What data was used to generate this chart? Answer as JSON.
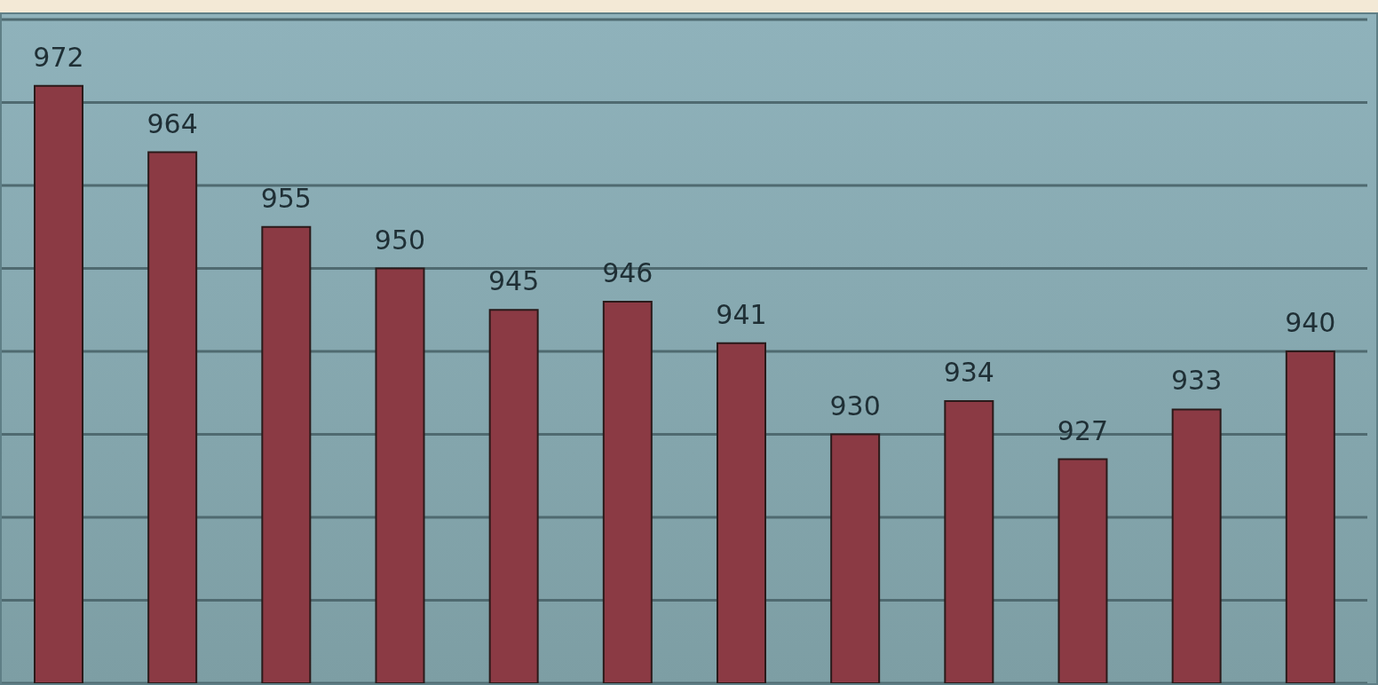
{
  "chart_data": {
    "type": "bar",
    "categories": [
      null,
      null,
      null,
      null,
      null,
      null,
      null,
      null,
      null,
      null,
      null,
      null
    ],
    "values": [
      972,
      964,
      955,
      950,
      945,
      946,
      941,
      930,
      934,
      927,
      933,
      940
    ],
    "color": "#8b3a44",
    "data_labels": true,
    "grid": "y",
    "ylim": [
      900,
      980
    ],
    "yticks": [
      {
        "value": 900,
        "label": null
      },
      {
        "value": 910,
        "label": null
      },
      {
        "value": 920,
        "label": null
      },
      {
        "value": 930,
        "label": null
      },
      {
        "value": 940,
        "label": null
      },
      {
        "value": 950,
        "label": null
      },
      {
        "value": 960,
        "label": null
      },
      {
        "value": 970,
        "label": null
      },
      {
        "value": 980,
        "label": null
      }
    ]
  }
}
